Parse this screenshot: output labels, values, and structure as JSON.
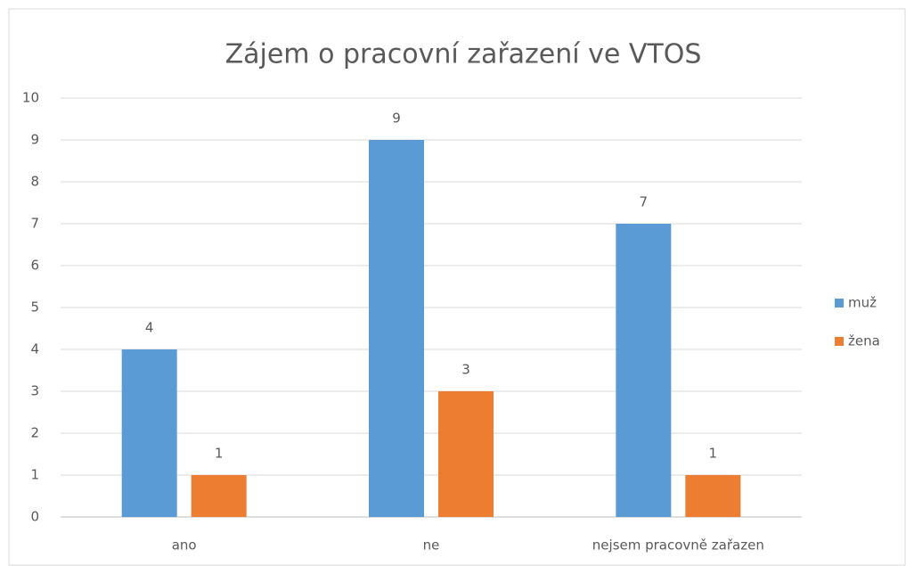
{
  "chart_data": {
    "type": "bar",
    "title": "Zájem o pracovní zařazení ve VTOS",
    "categories": [
      "ano",
      "ne",
      "nejsem pracovně zařazen"
    ],
    "series": [
      {
        "name": "muž",
        "color": "#5b9bd5",
        "values": [
          4,
          9,
          7
        ]
      },
      {
        "name": "žena",
        "color": "#ed7d31",
        "values": [
          1,
          3,
          1
        ]
      }
    ],
    "ylim": [
      0,
      10
    ],
    "yticks": [
      0,
      1,
      2,
      3,
      4,
      5,
      6,
      7,
      8,
      9,
      10
    ],
    "grid": true,
    "legend": "right"
  }
}
